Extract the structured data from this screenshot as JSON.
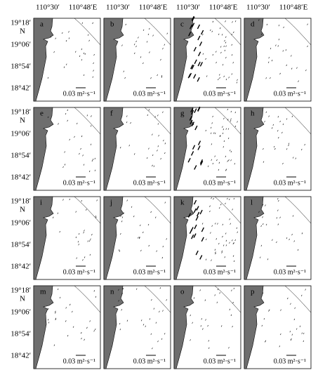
{
  "columns": [
    {
      "lon1": "110°30′",
      "lon2": "110°48′E"
    },
    {
      "lon1": "110°30′",
      "lon2": "110°48′E"
    },
    {
      "lon1": "110°30′",
      "lon2": "110°48′E"
    },
    {
      "lon1": "110°30′",
      "lon2": "110°48′E"
    }
  ],
  "rows": [
    {
      "lat1": "19°18′",
      "n": "N",
      "lat2": "19°06′",
      "lat3": "18°54′",
      "lat4": "18°42′"
    },
    {
      "lat1": "19°18′",
      "n": "N",
      "lat2": "19°06′",
      "lat3": "18°54′",
      "lat4": "18°42′"
    },
    {
      "lat1": "19°18′",
      "n": "N",
      "lat2": "19°06′",
      "lat3": "18°54′",
      "lat4": "18°42′"
    },
    {
      "lat1": "19°18′",
      "n": "N",
      "lat2": "19°06′",
      "lat3": "18°54′",
      "lat4": "18°42′"
    }
  ],
  "panels": [
    {
      "letter": "a",
      "scale": "0.03 m²·s⁻¹"
    },
    {
      "letter": "b",
      "scale": "0.03 m²·s⁻¹"
    },
    {
      "letter": "c",
      "scale": "0.03 m²·s⁻¹"
    },
    {
      "letter": "d",
      "scale": "0.03 m²·s⁻¹"
    },
    {
      "letter": "e",
      "scale": "0.03 m²·s⁻¹"
    },
    {
      "letter": "f",
      "scale": "0.03 m²·s⁻¹"
    },
    {
      "letter": "g",
      "scale": "0.03 m²·s⁻¹"
    },
    {
      "letter": "h",
      "scale": "0.03 m²·s⁻¹"
    },
    {
      "letter": "i",
      "scale": "0.03 m²·s⁻¹"
    },
    {
      "letter": "j",
      "scale": "0.03 m²·s⁻¹"
    },
    {
      "letter": "k",
      "scale": "0.03 m²·s⁻¹"
    },
    {
      "letter": "l",
      "scale": "0.03 m²·s⁻¹"
    },
    {
      "letter": "m",
      "scale": "0.03 m²·s⁻¹"
    },
    {
      "letter": "n",
      "scale": "0.03 m²·s⁻¹"
    },
    {
      "letter": "o",
      "scale": "0.03 m²·s⁻¹"
    },
    {
      "letter": "p",
      "scale": "0.03 m²·s⁻¹"
    }
  ]
}
